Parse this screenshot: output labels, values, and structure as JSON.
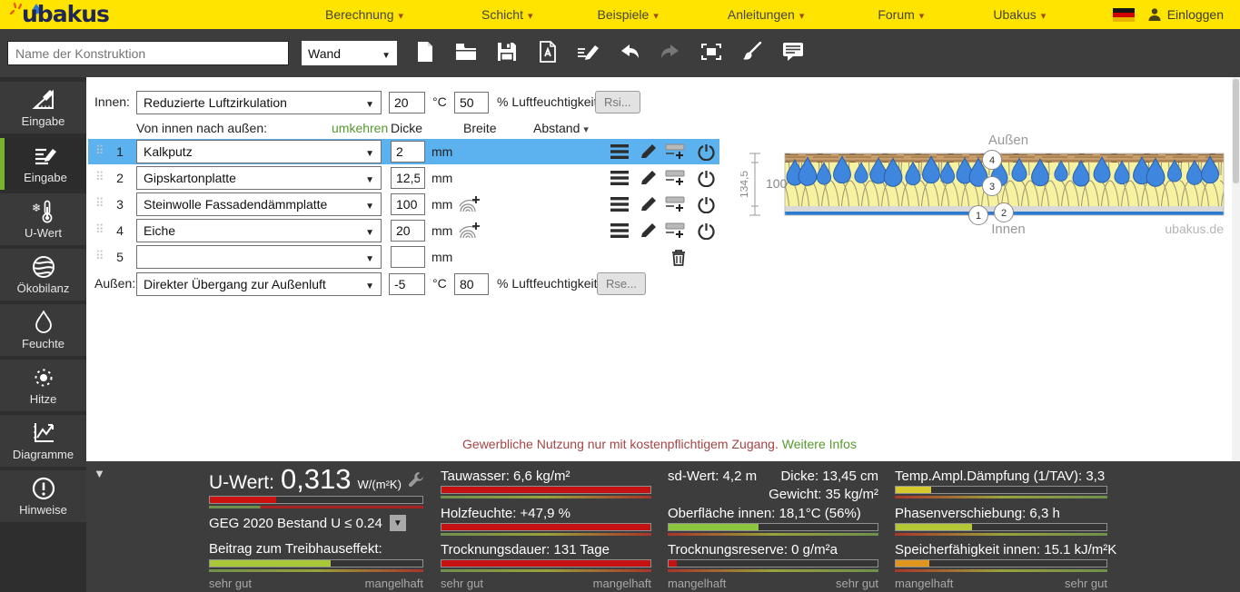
{
  "topnav": {
    "logo": "ubakus",
    "menu": [
      {
        "label": "Berechnung"
      },
      {
        "label": "Schicht"
      },
      {
        "label": "Beispiele"
      },
      {
        "label": "Anleitungen"
      },
      {
        "label": "Forum"
      },
      {
        "label": "Ubakus"
      }
    ],
    "login_label": "Einloggen",
    "icons": [
      "german-flag-icon",
      "user-icon"
    ]
  },
  "toolbar": {
    "name_placeholder": "Name der Konstruktion",
    "type_value": "Wand",
    "icons": [
      "new-document-icon",
      "open-folder-icon",
      "save-icon",
      "pdf-export-icon",
      "edit-notes-icon",
      "undo-icon",
      "redo-icon",
      "fullscreen-icon",
      "paint-icon",
      "comment-icon"
    ]
  },
  "sidebar": {
    "items": [
      {
        "label": "Eingabe",
        "icon": "geometry-icon",
        "active": false
      },
      {
        "label": "Eingabe",
        "icon": "list-edit-icon",
        "active": true
      },
      {
        "label": "U-Wert",
        "icon": "thermometer-icon",
        "active": false
      },
      {
        "label": "Ökobilanz",
        "icon": "globe-icon",
        "active": false
      },
      {
        "label": "Feuchte",
        "icon": "droplet-icon",
        "active": false
      },
      {
        "label": "Hitze",
        "icon": "sun-icon",
        "active": false
      },
      {
        "label": "Diagramme",
        "icon": "chart-icon",
        "active": false
      },
      {
        "label": "Hinweise",
        "icon": "alert-icon",
        "active": false
      }
    ]
  },
  "form": {
    "innen": {
      "label": "Innen:",
      "select": "Reduzierte Luftzirkulation",
      "temp": "20",
      "temp_unit": "°C",
      "humidity": "50",
      "humidity_label": "% Luftfeuchtigkeit",
      "rsi_button": "Rsi..."
    },
    "columns": {
      "direction": "Von innen nach außen:",
      "reverse_link": "umkehren",
      "dicke": "Dicke",
      "breite": "Breite",
      "abstand": "Abstand"
    },
    "unit_mm": "mm",
    "layers": [
      {
        "num": "1",
        "material": "Kalkputz",
        "dicke": "2",
        "selected": true
      },
      {
        "num": "2",
        "material": "Gipskartonplatte",
        "dicke": "12,5",
        "selected": false
      },
      {
        "num": "3",
        "material": "Steinwolle Fassadendämmplatte",
        "dicke": "100",
        "selected": false
      },
      {
        "num": "4",
        "material": "Eiche",
        "dicke": "20",
        "selected": false
      },
      {
        "num": "5",
        "material": "",
        "dicke": "",
        "selected": false
      }
    ],
    "row_icons": [
      "layer-menu-icon",
      "edit-layer-icon",
      "add-layer-icon",
      "toggle-layer-icon",
      "delete-layer-icon",
      "wood-grain-icon"
    ],
    "aussen": {
      "label": "Außen:",
      "select": "Direkter Übergang zur Außenluft",
      "temp": "-5",
      "temp_unit": "°C",
      "humidity": "80",
      "humidity_label": "% Luftfeuchtigkeit",
      "rse_button": "Rse..."
    }
  },
  "diagram": {
    "label_aussen": "Außen",
    "label_innen": "Innen",
    "watermark": "ubakus.de",
    "dim_total": "134,5",
    "dim_insulation": "100",
    "marker1": "1",
    "marker2": "2",
    "marker3": "3",
    "marker4": "4"
  },
  "notice": {
    "text": "Gewerbliche Nutzung nur mit kostenpflichtigem Zugang.",
    "link": "Weitere Infos"
  },
  "results": {
    "col1": {
      "uwert_label": "U-Wert:",
      "uwert_value": "0,313",
      "uwert_unit": "W/(m²K)",
      "uwert_bar": {
        "pct": 31,
        "color": "#cc1111"
      },
      "geg_text": "GEG 2020 Bestand U ≤ 0.24",
      "beitrag_label": "Beitrag zum Treibhauseffekt:",
      "beitrag_bar": {
        "pct": 57,
        "color": "#a9c837"
      },
      "scale_left": "sehr gut",
      "scale_right": "mangelhaft"
    },
    "col2": {
      "metrics": [
        {
          "text": "Tauwasser: 6,6 kg/m²",
          "bar": {
            "pct": 100,
            "color": "#c41212"
          }
        },
        {
          "text": "Holzfeuchte: +47,9 %",
          "bar": {
            "pct": 100,
            "color": "#c41212"
          }
        },
        {
          "text": "Trocknungsdauer: 131 Tage",
          "bar": {
            "pct": 100,
            "color": "#c41212"
          }
        }
      ],
      "scale_left": "sehr gut",
      "scale_right": "mangelhaft"
    },
    "col3": {
      "sd_text": "sd-Wert: 4,2 m",
      "dicke_text": "Dicke: 13,45 cm",
      "gewicht_text": "Gewicht: 35 kg/m²",
      "metrics": [
        {
          "text": "Oberfläche innen: 18,1°C (56%)",
          "bar": {
            "pct": 43,
            "color": "#8cc63f"
          }
        },
        {
          "text": "Trocknungsreserve: 0 g/m²a",
          "bar": {
            "pct": 4,
            "color": "#c41212"
          }
        }
      ],
      "scale_left": "mangelhaft",
      "scale_right": "sehr gut"
    },
    "col4": {
      "metrics": [
        {
          "text": "Temp.Ampl.Dämpfung (1/TAV): 3,3",
          "bar": {
            "pct": 17,
            "color": "#d6ca2e"
          }
        },
        {
          "text": "Phasenverschiebung: 6,3 h",
          "bar": {
            "pct": 36,
            "color": "#b5c636"
          }
        },
        {
          "text": "Speicherfähigkeit innen: 15.1 kJ/m²K",
          "bar": {
            "pct": 16,
            "color": "#e0951e"
          }
        }
      ],
      "scale_left": "mangelhaft",
      "scale_right": "sehr gut"
    }
  }
}
